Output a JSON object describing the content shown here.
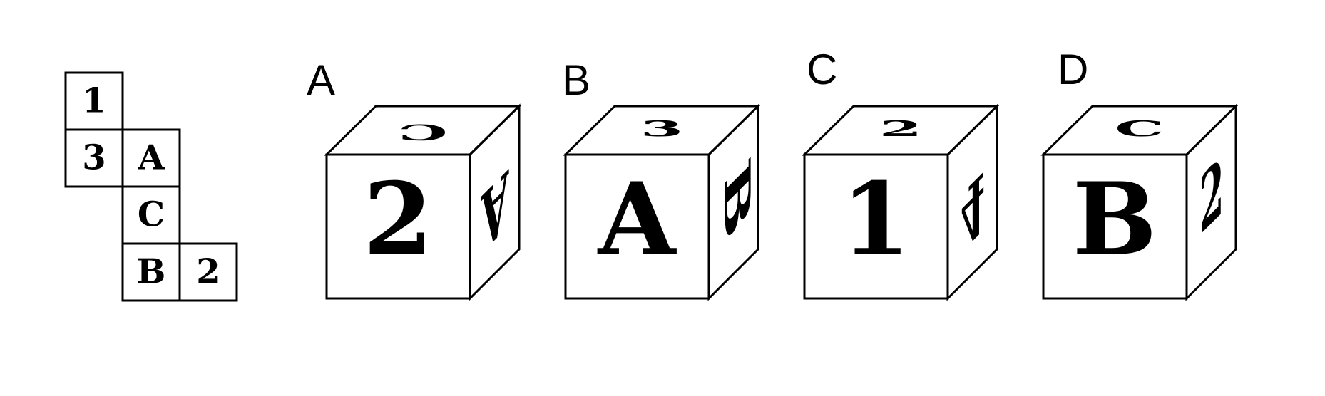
{
  "net": {
    "faces": [
      "1",
      "3",
      "A",
      "C",
      "B",
      "2"
    ]
  },
  "options": [
    {
      "label": "A",
      "front": "2",
      "top": "C",
      "side": "A"
    },
    {
      "label": "B",
      "front": "A",
      "top": "3",
      "side": "B"
    },
    {
      "label": "C",
      "front": "1",
      "top": "2",
      "side": "4"
    },
    {
      "label": "D",
      "front": "B",
      "top": "C",
      "side": "2"
    }
  ]
}
